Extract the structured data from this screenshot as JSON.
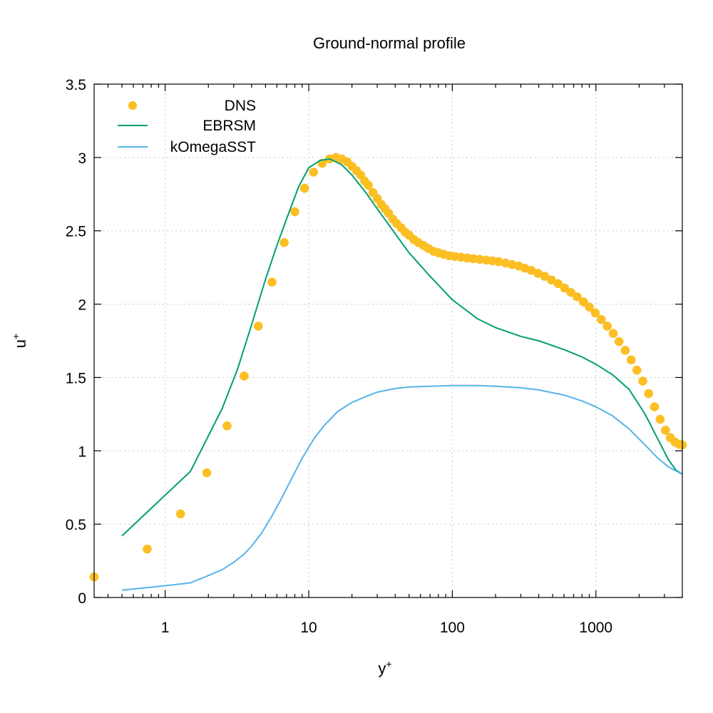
{
  "chart_data": {
    "type": "line",
    "title": "Ground-normal profile",
    "xlabel": "y",
    "xlabel_sup": "+",
    "ylabel": "u",
    "ylabel_sup": "+",
    "xscale": "log",
    "xlim": [
      0.32,
      4000
    ],
    "ylim": [
      0,
      3.5
    ],
    "grid": true,
    "legend_position": "top-left",
    "x_ticks": [
      1,
      10,
      100,
      1000
    ],
    "x_tick_labels": [
      "1",
      "10",
      "100",
      "1000"
    ],
    "y_ticks": [
      0,
      0.5,
      1,
      1.5,
      2,
      2.5,
      3,
      3.5
    ],
    "y_tick_labels": [
      "0",
      "0.5",
      "1",
      "1.5",
      "2",
      "2.5",
      "3",
      "3.5"
    ],
    "series": [
      {
        "name": "DNS",
        "style": "points",
        "color": "#fbbf24",
        "x": [
          0.32,
          0.75,
          1.28,
          1.95,
          2.7,
          3.55,
          4.45,
          5.55,
          6.75,
          8.0,
          9.35,
          10.8,
          12.4,
          14.0,
          15.5,
          17.0,
          18.5,
          20.0,
          21.5,
          23.0,
          24.5,
          26.0,
          28.0,
          30.0,
          32.0,
          34.0,
          36.0,
          38.5,
          41.0,
          44.0,
          47.0,
          50.0,
          54.0,
          58.0,
          63.0,
          68.0,
          74.0,
          80.0,
          87.0,
          95.0,
          104.0,
          115.0,
          127.0,
          140.0,
          155.0,
          172.0,
          190.0,
          210.0,
          235.0,
          260.0,
          290.0,
          320.0,
          355.0,
          395.0,
          440.0,
          490.0,
          545.0,
          605.0,
          670.0,
          740.0,
          820.0,
          900.0,
          990.0,
          1090.0,
          1200.0,
          1320.0,
          1450.0,
          1600.0,
          1760.0,
          1930.0,
          2120.0,
          2330.0,
          2560.0,
          2800.0,
          3050.0,
          3300.0,
          3550.0,
          3800.0,
          4000.0
        ],
        "y": [
          0.14,
          0.33,
          0.57,
          0.85,
          1.17,
          1.51,
          1.85,
          2.15,
          2.42,
          2.63,
          2.79,
          2.9,
          2.96,
          2.99,
          3.0,
          2.99,
          2.97,
          2.94,
          2.91,
          2.88,
          2.84,
          2.81,
          2.76,
          2.72,
          2.68,
          2.65,
          2.62,
          2.58,
          2.55,
          2.52,
          2.49,
          2.47,
          2.44,
          2.42,
          2.4,
          2.38,
          2.36,
          2.35,
          2.34,
          2.33,
          2.325,
          2.32,
          2.315,
          2.31,
          2.305,
          2.3,
          2.295,
          2.29,
          2.28,
          2.27,
          2.26,
          2.245,
          2.23,
          2.21,
          2.19,
          2.165,
          2.14,
          2.11,
          2.08,
          2.05,
          2.015,
          1.98,
          1.94,
          1.895,
          1.85,
          1.8,
          1.745,
          1.685,
          1.62,
          1.55,
          1.475,
          1.39,
          1.3,
          1.215,
          1.14,
          1.09,
          1.06,
          1.045,
          1.04
        ]
      },
      {
        "name": "EBRSM",
        "style": "line",
        "color": "#009e73",
        "x": [
          0.5,
          1.5,
          2.5,
          3.2,
          4.0,
          5.0,
          6.0,
          7.0,
          8.5,
          10.0,
          12.0,
          14.0,
          17.0,
          20.0,
          25.0,
          30.0,
          40.0,
          50.0,
          70.0,
          100.0,
          150.0,
          200.0,
          300.0,
          400.0,
          600.0,
          800.0,
          1000.0,
          1300.0,
          1700.0,
          2200.0,
          2700.0,
          3200.0,
          3600.0,
          4000.0
        ],
        "y": [
          0.42,
          0.86,
          1.29,
          1.56,
          1.86,
          2.17,
          2.4,
          2.58,
          2.8,
          2.93,
          2.98,
          2.99,
          2.95,
          2.88,
          2.76,
          2.65,
          2.48,
          2.35,
          2.19,
          2.03,
          1.9,
          1.84,
          1.78,
          1.75,
          1.69,
          1.64,
          1.59,
          1.52,
          1.42,
          1.25,
          1.08,
          0.94,
          0.87,
          0.84
        ]
      },
      {
        "name": "kOmegaSST",
        "style": "line",
        "color": "#56b4e9",
        "x": [
          0.5,
          1.0,
          1.5,
          2.0,
          2.5,
          3.0,
          3.5,
          4.0,
          4.7,
          5.5,
          6.5,
          7.5,
          9.0,
          11.0,
          13.0,
          16.0,
          20.0,
          25.0,
          30.0,
          40.0,
          50.0,
          70.0,
          100.0,
          150.0,
          200.0,
          300.0,
          400.0,
          600.0,
          800.0,
          1000.0,
          1300.0,
          1700.0,
          2200.0,
          2700.0,
          3200.0,
          4000.0
        ],
        "y": [
          0.05,
          0.08,
          0.1,
          0.15,
          0.19,
          0.24,
          0.29,
          0.35,
          0.44,
          0.55,
          0.68,
          0.8,
          0.95,
          1.09,
          1.18,
          1.27,
          1.33,
          1.37,
          1.4,
          1.425,
          1.435,
          1.44,
          1.445,
          1.445,
          1.44,
          1.43,
          1.415,
          1.38,
          1.34,
          1.3,
          1.24,
          1.15,
          1.04,
          0.95,
          0.89,
          0.84
        ]
      }
    ]
  }
}
